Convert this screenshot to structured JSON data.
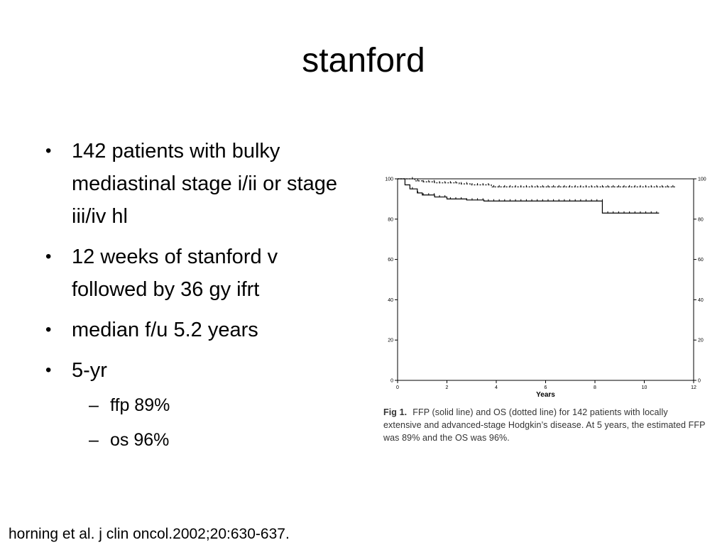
{
  "slide": {
    "title": "stanford",
    "bullets": [
      "142 patients with bulky mediastinal stage i/ii or stage iii/iv hl",
      "12 weeks of stanford v followed by 36 gy ifrt",
      "median f/u 5.2 years",
      "5-yr"
    ],
    "sub_bullets": [
      "ffp 89%",
      "os 96%"
    ],
    "bullet_glyph": "•",
    "dash_glyph": "–",
    "citation": "horning et al. j clin oncol.2002;20:630-637."
  },
  "figure": {
    "caption_label": "Fig 1.",
    "caption_text": "FFP (solid line) and OS (dotted line) for 142 patients with locally extensive and advanced-stage Hodgkin’s disease. At 5 years, the estimated FFP was 89% and the OS was 96%."
  },
  "chart_data": {
    "type": "line",
    "xlabel": "Years",
    "ylabel": "",
    "xlim": [
      0,
      12
    ],
    "ylim": [
      0,
      100
    ],
    "x_ticks": [
      0,
      2,
      4,
      6,
      8,
      10,
      12
    ],
    "y_ticks": [
      0,
      20,
      40,
      60,
      80,
      100
    ],
    "grid": false,
    "series": [
      {
        "style": "dotted",
        "x": [
          0,
          0.5,
          0.7,
          1.0,
          1.5,
          2.5,
          3.0,
          3.8,
          11.3
        ],
        "y": [
          100,
          100,
          99,
          98.5,
          98,
          97.5,
          97,
          96,
          96
        ]
      },
      {
        "style": "solid",
        "x": [
          0,
          0.3,
          0.5,
          0.8,
          1.0,
          1.5,
          2.0,
          2.8,
          3.5,
          3.8,
          8.3,
          8.3,
          10.6
        ],
        "y": [
          100,
          97,
          95,
          93,
          92,
          91,
          90,
          89.5,
          89,
          89,
          89,
          83,
          83
        ]
      }
    ],
    "colors": {
      "lines": "#000000",
      "axes": "#000000"
    }
  }
}
